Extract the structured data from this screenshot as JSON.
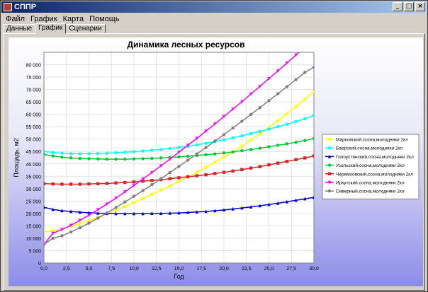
{
  "window": {
    "title": "СППР",
    "buttons": [
      "_",
      "□",
      "×"
    ]
  },
  "menu": [
    "Файл",
    "График",
    "Карта",
    "Помощь"
  ],
  "tabs": [
    {
      "label": "Данные",
      "active": false
    },
    {
      "label": "График",
      "active": true
    },
    {
      "label": "Сценарии",
      "active": false
    }
  ],
  "chart_data": {
    "type": "line",
    "title": "Динамика лесных ресурсов",
    "xlabel": "Год",
    "ylabel": "Площадь, м2",
    "xlim": [
      0,
      30
    ],
    "ylim": [
      0,
      85000
    ],
    "xticks": [
      "0,0",
      "2,5",
      "5,0",
      "7,5",
      "10,0",
      "12,5",
      "15,0",
      "17,5",
      "20,0",
      "22,5",
      "25,0",
      "27,5",
      "30,0"
    ],
    "yticks": [
      "0",
      "5 000",
      "10 000",
      "15 000",
      "20 000",
      "25 000",
      "30 000",
      "35 000",
      "40 000",
      "45 000",
      "50 000",
      "55 000",
      "60 000",
      "65 000",
      "70 000",
      "75 000",
      "80 000"
    ],
    "grid": true,
    "legend_position": "right",
    "x": [
      0,
      1,
      2,
      3,
      4,
      5,
      6,
      7,
      8,
      9,
      10,
      11,
      12,
      13,
      14,
      15,
      16,
      17,
      18,
      19,
      20,
      21,
      22,
      23,
      24,
      25,
      26,
      27,
      28,
      29,
      30
    ],
    "series": [
      {
        "name": "Марковский,сосна,молодняки 2кл",
        "color": "#ffff00",
        "marker": "circle",
        "values": [
          12500,
          13000,
          13800,
          14800,
          15900,
          17100,
          18400,
          19800,
          21300,
          22800,
          24400,
          26000,
          27700,
          29400,
          31100,
          32900,
          34700,
          36600,
          38600,
          40600,
          42700,
          44900,
          47200,
          49600,
          52100,
          54700,
          57400,
          60200,
          63100,
          66100,
          69200
        ]
      },
      {
        "name": "Баерский,сосна,молодняки 2кл",
        "color": "#00ffff",
        "marker": "circle",
        "values": [
          45000,
          44600,
          44300,
          44100,
          44100,
          44100,
          44200,
          44300,
          44500,
          44700,
          44900,
          45200,
          45500,
          45800,
          46200,
          46600,
          47100,
          47700,
          48300,
          49000,
          49700,
          50500,
          51300,
          52200,
          53100,
          54000,
          55000,
          56000,
          57100,
          58200,
          59500
        ]
      },
      {
        "name": "Голоустинский,сосна,молодняки 2кл",
        "color": "#0000cc",
        "marker": "triangle",
        "values": [
          22500,
          21600,
          21100,
          20800,
          20500,
          20300,
          20100,
          20000,
          19900,
          19900,
          19900,
          19900,
          20000,
          20000,
          20100,
          20200,
          20400,
          20600,
          20800,
          21100,
          21400,
          21800,
          22200,
          22600,
          23100,
          23600,
          24100,
          24700,
          25300,
          25900,
          26500
        ]
      },
      {
        "name": "Усольский,сосна,молодняки 2кл",
        "color": "#00cc33",
        "marker": "circle",
        "values": [
          43800,
          43200,
          42700,
          42400,
          42200,
          42100,
          42000,
          41900,
          41900,
          41900,
          42000,
          42100,
          42200,
          42400,
          42600,
          42800,
          43100,
          43400,
          43700,
          44000,
          44400,
          44800,
          45300,
          45800,
          46300,
          46900,
          47500,
          48100,
          48700,
          49400,
          50200
        ]
      },
      {
        "name": "Черемховский,сосна,молодняки 2кл",
        "color": "#dd2222",
        "marker": "square",
        "values": [
          32000,
          31900,
          31800,
          31800,
          31800,
          31900,
          32000,
          32100,
          32300,
          32500,
          32700,
          33000,
          33300,
          33600,
          34000,
          34400,
          34800,
          35200,
          35600,
          36100,
          36600,
          37100,
          37700,
          38300,
          38900,
          39600,
          40300,
          41000,
          41700,
          42400,
          43200
        ]
      },
      {
        "name": "Иркутский,сосна,молодняки 2кл",
        "color": "#ff00ff",
        "marker": "triangle-down",
        "values": [
          7500,
          12000,
          13500,
          15200,
          17200,
          19300,
          21500,
          23800,
          26200,
          28700,
          31300,
          33900,
          36500,
          39200,
          41900,
          44700,
          47500,
          50300,
          53200,
          56100,
          59100,
          62100,
          65100,
          68200,
          71300,
          74400,
          77500,
          80700,
          83900,
          87100,
          90200
        ]
      },
      {
        "name": "Северный,сосна,молодняки 2кл",
        "color": "#808080",
        "marker": "circle",
        "values": [
          7500,
          10000,
          11000,
          12500,
          14200,
          16100,
          18100,
          20200,
          22400,
          24600,
          26900,
          29200,
          31600,
          34000,
          36500,
          39000,
          41500,
          44000,
          46600,
          49200,
          51800,
          54500,
          57200,
          59900,
          62700,
          65500,
          68300,
          71100,
          74000,
          76900,
          79000
        ]
      }
    ]
  }
}
